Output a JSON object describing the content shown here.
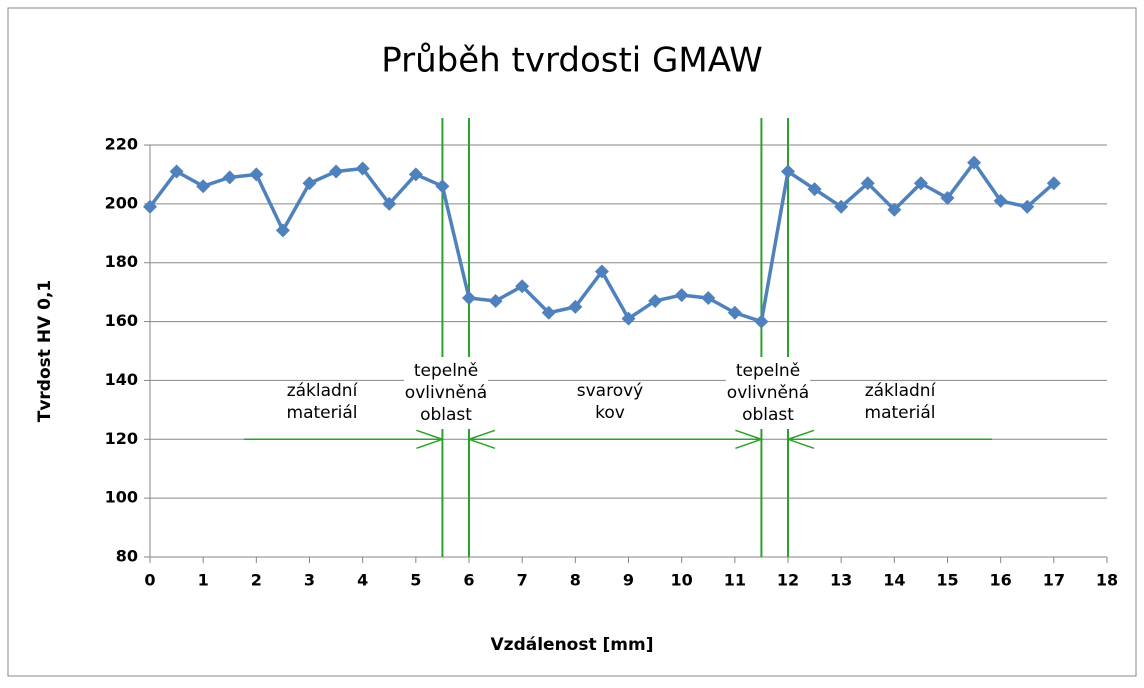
{
  "chart_data": {
    "type": "line",
    "title": "Průběh tvrdosti GMAW",
    "x_label": "Vzdálenost [mm]",
    "y_label": "Tvrdost HV 0,1",
    "x": [
      0,
      0.5,
      1,
      1.5,
      2,
      2.5,
      3,
      3.5,
      4,
      4.5,
      5,
      5.5,
      6,
      6.5,
      7,
      7.5,
      8,
      8.5,
      9,
      9.5,
      10,
      10.5,
      11,
      11.5,
      12,
      12.5,
      13,
      13.5,
      14,
      14.5,
      15,
      15.5,
      16,
      16.5,
      17
    ],
    "series": [
      {
        "color": "#4f81bd",
        "values": [
          199,
          211,
          206,
          209,
          210,
          191,
          207,
          211,
          212,
          200,
          210,
          206,
          168,
          167,
          172,
          163,
          165,
          177,
          161,
          167,
          169,
          168,
          163,
          160,
          211,
          205,
          199,
          207,
          198,
          207,
          202,
          214,
          201,
          199,
          207
        ]
      }
    ],
    "xlim": [
      0,
      18
    ],
    "xticks": [
      0,
      1,
      2,
      3,
      4,
      5,
      6,
      7,
      8,
      9,
      10,
      11,
      12,
      13,
      14,
      15,
      16,
      17,
      18
    ],
    "ylim": [
      80,
      220
    ],
    "yticks": [
      80,
      100,
      120,
      140,
      160,
      180,
      200,
      220
    ],
    "grid": true,
    "zone_boundaries": [
      5.5,
      6,
      11.5,
      12
    ],
    "annotations": [
      {
        "lines": [
          "základní",
          "materiál"
        ]
      },
      {
        "lines": [
          "tepelně",
          "ovlivněná",
          "oblast"
        ]
      },
      {
        "lines": [
          "svarový",
          "kov"
        ]
      },
      {
        "lines": [
          "tepelně",
          "ovlivněná",
          "oblast"
        ]
      },
      {
        "lines": [
          "základní",
          "materiál"
        ]
      }
    ]
  }
}
